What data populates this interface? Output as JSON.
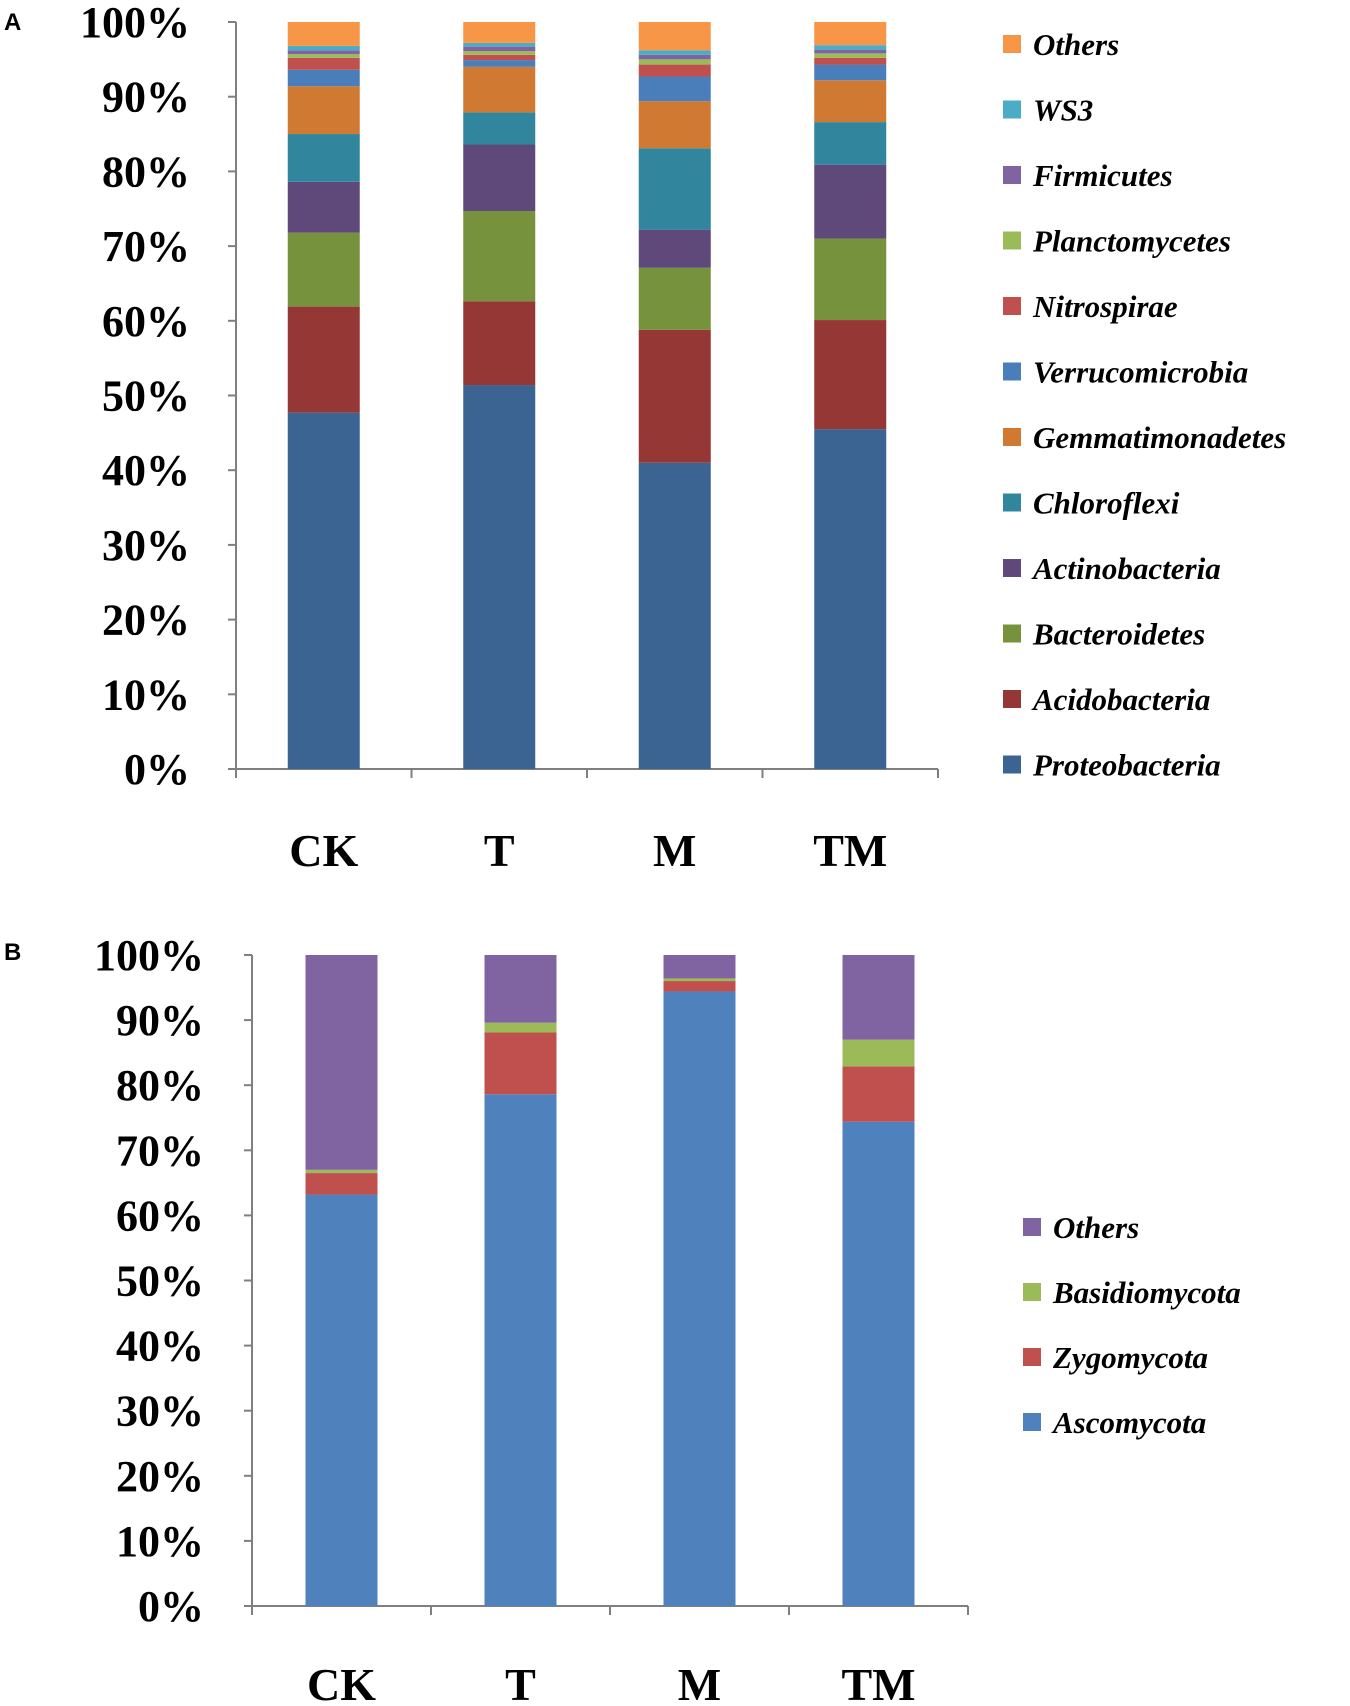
{
  "chart_data": [
    {
      "type": "bar",
      "stacked": true,
      "panel_label": "A",
      "categories": [
        "CK",
        "T",
        "M",
        "TM"
      ],
      "ylim": [
        0,
        100
      ],
      "yticks": [
        "0%",
        "10%",
        "20%",
        "30%",
        "40%",
        "50%",
        "60%",
        "70%",
        "80%",
        "90%",
        "100%"
      ],
      "legend_position": "right",
      "series": [
        {
          "name": "Proteobacteria",
          "color": "#3b6493",
          "values": [
            47.7,
            51.4,
            41.0,
            45.5
          ]
        },
        {
          "name": "Acidobacteria",
          "color": "#953735",
          "values": [
            14.2,
            11.2,
            17.8,
            14.6
          ]
        },
        {
          "name": "Bacteroidetes",
          "color": "#76923c",
          "values": [
            9.9,
            12.1,
            8.3,
            10.9
          ]
        },
        {
          "name": "Actinobacteria",
          "color": "#5f497a",
          "values": [
            6.8,
            8.9,
            5.1,
            9.9
          ]
        },
        {
          "name": "Chloroflexi",
          "color": "#31859c",
          "values": [
            6.4,
            4.3,
            10.9,
            5.7
          ]
        },
        {
          "name": "Gemmatimonadetes",
          "color": "#d07932",
          "values": [
            6.4,
            6.1,
            6.3,
            5.6
          ]
        },
        {
          "name": "Verrucomicrobia",
          "color": "#4a7ebb",
          "values": [
            2.2,
            0.9,
            3.3,
            2.1
          ]
        },
        {
          "name": "Nitrospirae",
          "color": "#c0504d",
          "values": [
            1.6,
            0.7,
            1.6,
            0.9
          ]
        },
        {
          "name": "Planctomycetes",
          "color": "#9bbb59",
          "values": [
            0.5,
            0.5,
            0.7,
            0.6
          ]
        },
        {
          "name": "Firmicutes",
          "color": "#8064a2",
          "values": [
            0.5,
            0.6,
            0.6,
            0.5
          ]
        },
        {
          "name": "WS3",
          "color": "#4bacc6",
          "values": [
            0.6,
            0.5,
            0.6,
            0.6
          ]
        },
        {
          "name": "Others",
          "color": "#f79646",
          "values": [
            3.2,
            2.8,
            3.8,
            3.1
          ]
        }
      ]
    },
    {
      "type": "bar",
      "stacked": true,
      "panel_label": "B",
      "categories": [
        "CK",
        "T",
        "M",
        "TM"
      ],
      "ylim": [
        0,
        100
      ],
      "yticks": [
        "0%",
        "10%",
        "20%",
        "30%",
        "40%",
        "50%",
        "60%",
        "70%",
        "80%",
        "90%",
        "100%"
      ],
      "legend_position": "right",
      "series": [
        {
          "name": "Ascomycota",
          "color": "#4f81bd",
          "values": [
            63.2,
            78.6,
            94.4,
            74.4
          ]
        },
        {
          "name": "Zygomycota",
          "color": "#c0504d",
          "values": [
            3.3,
            9.5,
            1.6,
            8.5
          ]
        },
        {
          "name": "Basidiomycota",
          "color": "#9bbb59",
          "values": [
            0.5,
            1.5,
            0.4,
            4.1
          ]
        },
        {
          "name": "Others",
          "color": "#8064a2",
          "values": [
            33.0,
            10.4,
            3.6,
            13.0
          ]
        }
      ]
    }
  ]
}
